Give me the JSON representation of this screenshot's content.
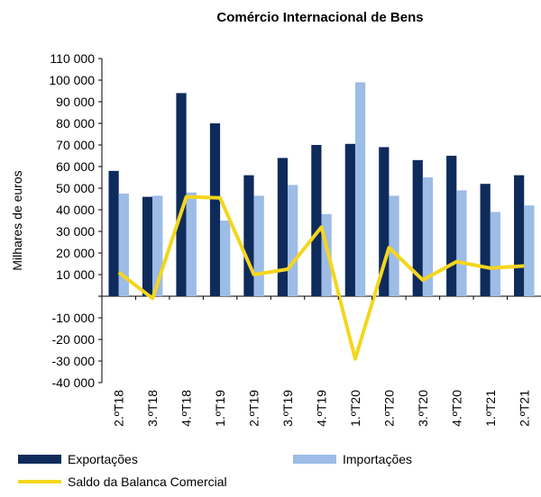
{
  "chart_data": {
    "type": "bar_line",
    "title": "Comércio Internacional de Bens",
    "y_label": "Milhares de euros",
    "categories": [
      "2.ºT18",
      "3.ºT18",
      "4.ºT18",
      "1.ºT19",
      "2.ºT19",
      "3.ºT19",
      "4.ºT19",
      "1.ºT20",
      "2.ºT20",
      "3.ºT20",
      "4.ºT20",
      "1.ºT21",
      "2.ºT21"
    ],
    "series": [
      {
        "name": "Exportações",
        "color": "#0e2b5c",
        "kind": "bar",
        "values": [
          58000,
          46000,
          94000,
          80000,
          56000,
          64000,
          70000,
          70500,
          69000,
          63000,
          65000,
          52000,
          56000
        ]
      },
      {
        "name": "Importações",
        "color": "#9dbce6",
        "kind": "bar",
        "values": [
          47500,
          46500,
          48000,
          35000,
          46500,
          51500,
          38000,
          99000,
          46500,
          55000,
          49000,
          39000,
          42000
        ]
      },
      {
        "name": "Saldo da Balanca Comercial",
        "color": "#f4d61e",
        "kind": "line",
        "values": [
          11000,
          -1000,
          46000,
          45500,
          10000,
          12500,
          32000,
          -29000,
          22500,
          7500,
          16000,
          13000,
          14000
        ]
      }
    ],
    "ylim": [
      -40000,
      110000
    ],
    "yticks": [
      {
        "value": -40000,
        "label": "-40 000"
      },
      {
        "value": -30000,
        "label": "-30 000"
      },
      {
        "value": -20000,
        "label": "-20 000"
      },
      {
        "value": -10000,
        "label": "-10 000"
      },
      {
        "value": 0,
        "label": ""
      },
      {
        "value": 10000,
        "label": "10 000"
      },
      {
        "value": 20000,
        "label": "20 000"
      },
      {
        "value": 30000,
        "label": "30 000"
      },
      {
        "value": 40000,
        "label": "40 000"
      },
      {
        "value": 50000,
        "label": "50 000"
      },
      {
        "value": 60000,
        "label": "60 000"
      },
      {
        "value": 70000,
        "label": "70 000"
      },
      {
        "value": 80000,
        "label": "80 000"
      },
      {
        "value": 90000,
        "label": "90 000"
      },
      {
        "value": 100000,
        "label": "100 000"
      },
      {
        "value": 110000,
        "label": "110 000"
      }
    ]
  }
}
